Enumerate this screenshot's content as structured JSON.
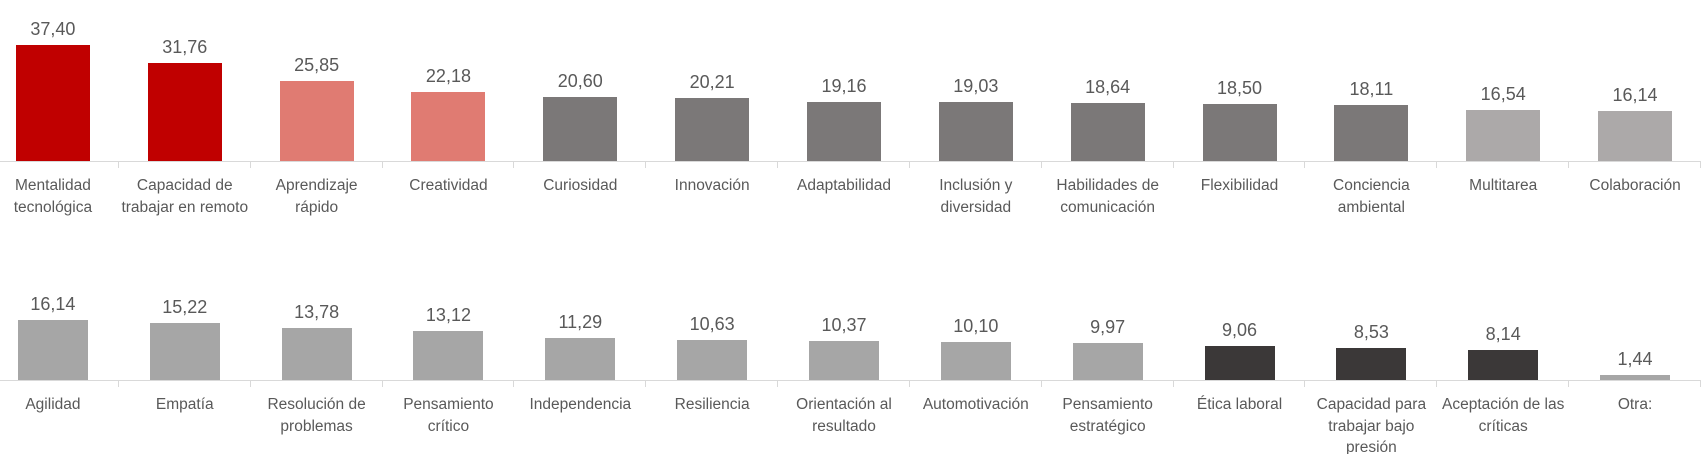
{
  "page": {
    "background_color": "#FFFFFF",
    "text_color": "#595959",
    "axis_color": "#D9D9D9"
  },
  "chart_data": [
    {
      "type": "bar",
      "position": "top-row",
      "title": "",
      "xlabel": "",
      "ylabel": "",
      "grid": false,
      "legend": "none",
      "data_label_color": "#595959",
      "axis_color": "#D9D9D9",
      "categories": [
        "Mentalidad tecnológica",
        "Capacidad de trabajar en remoto",
        "Aprendizaje rápido",
        "Creatividad",
        "Curiosidad",
        "Innovación",
        "Adaptabilidad",
        "Inclusión y diversidad",
        "Habilidades de comunicación",
        "Flexibilidad",
        "Conciencia ambiental",
        "Multitarea",
        "Colaboración"
      ],
      "values": [
        37.4,
        31.76,
        25.85,
        22.18,
        20.6,
        20.21,
        19.16,
        19.03,
        18.64,
        18.5,
        18.11,
        16.54,
        16.14
      ],
      "value_labels": [
        "37,40",
        "31,76",
        "25,85",
        "22,18",
        "20,60",
        "20,21",
        "19,16",
        "19,03",
        "18,64",
        "18,50",
        "18,11",
        "16,54",
        "16,14"
      ],
      "bar_colors": [
        "#C00000",
        "#C00000",
        "#E07B72",
        "#E07B72",
        "#7B7878",
        "#7B7878",
        "#7B7878",
        "#7B7878",
        "#7B7878",
        "#7B7878",
        "#7B7878",
        "#ACA9A9",
        "#ACA9A9"
      ]
    },
    {
      "type": "bar",
      "position": "bottom-row",
      "title": "",
      "xlabel": "",
      "ylabel": "",
      "grid": false,
      "legend": "none",
      "data_label_color": "#595959",
      "axis_color": "#D9D9D9",
      "categories": [
        "Agilidad",
        "Empatía",
        "Resolución de problemas",
        "Pensamiento crítico",
        "Independencia",
        "Resiliencia",
        "Orientación al resultado",
        "Automotivación",
        "Pensamiento estratégico",
        "Ética laboral",
        "Capacidad para trabajar bajo presión",
        "Aceptación de las críticas",
        "Otra:"
      ],
      "values": [
        16.14,
        15.22,
        13.78,
        13.12,
        11.29,
        10.63,
        10.37,
        10.1,
        9.97,
        9.06,
        8.53,
        8.14,
        1.44
      ],
      "value_labels": [
        "16,14",
        "15,22",
        "13,78",
        "13,12",
        "11,29",
        "10,63",
        "10,37",
        "10,10",
        "9,97",
        "9,06",
        "8,53",
        "8,14",
        "1,44"
      ],
      "bar_colors": [
        "#A6A6A6",
        "#A6A6A6",
        "#A6A6A6",
        "#A6A6A6",
        "#A6A6A6",
        "#A6A6A6",
        "#A6A6A6",
        "#A6A6A6",
        "#A6A6A6",
        "#3B3838",
        "#3B3838",
        "#3B3838",
        "#A6A6A6"
      ]
    }
  ]
}
